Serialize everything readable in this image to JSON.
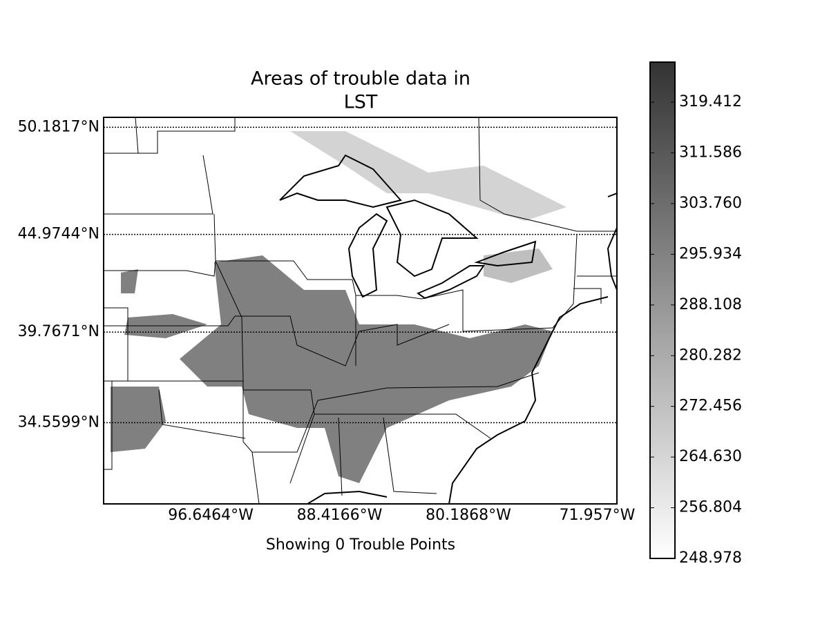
{
  "map": {
    "title_lines": [
      "Areas of trouble data in",
      "LST"
    ],
    "xlabel": "Showing 0 Trouble Points",
    "projection": "mercator",
    "xlim": [
      -103.49,
      -70.7
    ],
    "ylim": [
      29.6,
      50.64
    ],
    "lat_ticks": [
      {
        "value": 50.1817,
        "label": "50.1817°N"
      },
      {
        "value": 44.9744,
        "label": "44.9744°N"
      },
      {
        "value": 39.7671,
        "label": "39.7671°N"
      },
      {
        "value": 34.5599,
        "label": "34.5599°N"
      }
    ],
    "lon_ticks": [
      {
        "value": -96.6464,
        "label": "96.6464°W"
      },
      {
        "value": -88.4166,
        "label": "88.4166°W"
      },
      {
        "value": -80.1868,
        "label": "80.1868°W"
      },
      {
        "value": -71.957,
        "label": "71.957°W"
      }
    ],
    "colorbar": {
      "lim": [
        248.978,
        325.6
      ],
      "ticks": [
        248.978,
        256.804,
        264.63,
        272.456,
        280.282,
        288.108,
        295.934,
        303.76,
        311.586,
        319.412
      ],
      "tick_labels": [
        "248.978",
        "256.804",
        "264.630",
        "272.456",
        "280.282",
        "288.108",
        "295.934",
        "303.760",
        "311.586",
        "319.412"
      ]
    }
  }
}
